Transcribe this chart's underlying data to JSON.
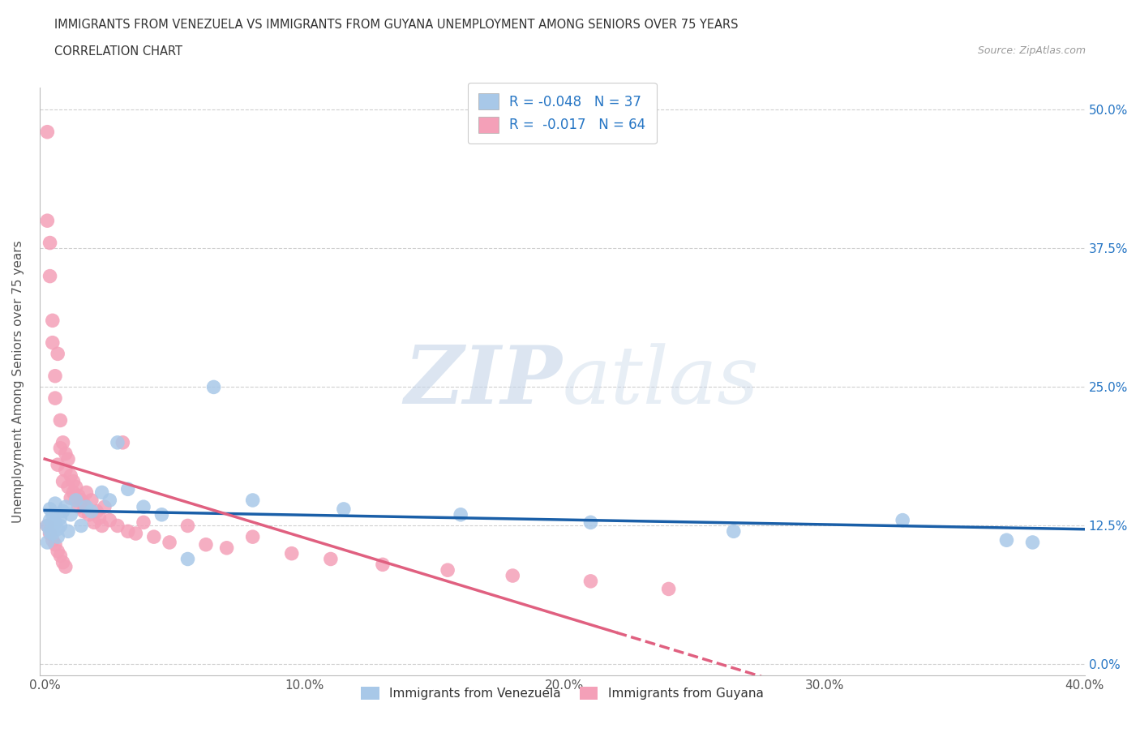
{
  "title_line1": "IMMIGRANTS FROM VENEZUELA VS IMMIGRANTS FROM GUYANA UNEMPLOYMENT AMONG SENIORS OVER 75 YEARS",
  "title_line2": "CORRELATION CHART",
  "source_text": "Source: ZipAtlas.com",
  "ylabel": "Unemployment Among Seniors over 75 years",
  "xlim": [
    -0.002,
    0.4
  ],
  "ylim": [
    -0.01,
    0.52
  ],
  "xticks": [
    0.0,
    0.1,
    0.2,
    0.3,
    0.4
  ],
  "xtick_labels": [
    "0.0%",
    "10.0%",
    "20.0%",
    "30.0%",
    "40.0%"
  ],
  "yticks": [
    0.0,
    0.125,
    0.25,
    0.375,
    0.5
  ],
  "ytick_labels_right": [
    "0.0%",
    "12.5%",
    "25.0%",
    "37.5%",
    "50.0%"
  ],
  "color_venezuela": "#a8c8e8",
  "color_guyana": "#f4a0b8",
  "trendline_venezuela_color": "#1a5fa8",
  "trendline_guyana_color": "#e06080",
  "legend_R_venezuela": "R = -0.048",
  "legend_N_venezuela": "N = 37",
  "legend_R_guyana": "R =  -0.017",
  "legend_N_guyana": "N = 64",
  "watermark_zip": "ZIP",
  "watermark_atlas": "atlas",
  "background_color": "#ffffff",
  "grid_color": "#d0d0d0",
  "venezuela_x": [
    0.001,
    0.001,
    0.002,
    0.002,
    0.002,
    0.003,
    0.003,
    0.004,
    0.004,
    0.005,
    0.005,
    0.006,
    0.006,
    0.007,
    0.008,
    0.009,
    0.01,
    0.012,
    0.014,
    0.016,
    0.018,
    0.022,
    0.025,
    0.028,
    0.032,
    0.038,
    0.045,
    0.055,
    0.065,
    0.08,
    0.115,
    0.16,
    0.21,
    0.265,
    0.33,
    0.37,
    0.38
  ],
  "venezuela_y": [
    0.125,
    0.11,
    0.14,
    0.13,
    0.12,
    0.135,
    0.118,
    0.128,
    0.145,
    0.122,
    0.115,
    0.132,
    0.125,
    0.138,
    0.142,
    0.12,
    0.135,
    0.148,
    0.125,
    0.142,
    0.138,
    0.155,
    0.148,
    0.2,
    0.158,
    0.142,
    0.135,
    0.095,
    0.25,
    0.148,
    0.14,
    0.135,
    0.128,
    0.12,
    0.13,
    0.112,
    0.11
  ],
  "guyana_x": [
    0.001,
    0.001,
    0.002,
    0.002,
    0.003,
    0.003,
    0.004,
    0.004,
    0.005,
    0.005,
    0.006,
    0.006,
    0.007,
    0.007,
    0.008,
    0.008,
    0.009,
    0.009,
    0.01,
    0.01,
    0.011,
    0.011,
    0.012,
    0.012,
    0.013,
    0.013,
    0.014,
    0.015,
    0.015,
    0.016,
    0.017,
    0.018,
    0.019,
    0.02,
    0.021,
    0.022,
    0.023,
    0.025,
    0.028,
    0.03,
    0.032,
    0.035,
    0.038,
    0.042,
    0.048,
    0.055,
    0.062,
    0.07,
    0.08,
    0.095,
    0.11,
    0.13,
    0.155,
    0.18,
    0.21,
    0.24,
    0.001,
    0.002,
    0.003,
    0.004,
    0.005,
    0.006,
    0.007,
    0.008
  ],
  "guyana_y": [
    0.48,
    0.4,
    0.38,
    0.35,
    0.31,
    0.29,
    0.26,
    0.24,
    0.28,
    0.18,
    0.22,
    0.195,
    0.2,
    0.165,
    0.19,
    0.175,
    0.185,
    0.16,
    0.15,
    0.17,
    0.155,
    0.165,
    0.148,
    0.16,
    0.142,
    0.152,
    0.148,
    0.138,
    0.145,
    0.155,
    0.135,
    0.148,
    0.128,
    0.138,
    0.132,
    0.125,
    0.142,
    0.13,
    0.125,
    0.2,
    0.12,
    0.118,
    0.128,
    0.115,
    0.11,
    0.125,
    0.108,
    0.105,
    0.115,
    0.1,
    0.095,
    0.09,
    0.085,
    0.08,
    0.075,
    0.068,
    0.125,
    0.118,
    0.112,
    0.108,
    0.102,
    0.098,
    0.092,
    0.088
  ]
}
